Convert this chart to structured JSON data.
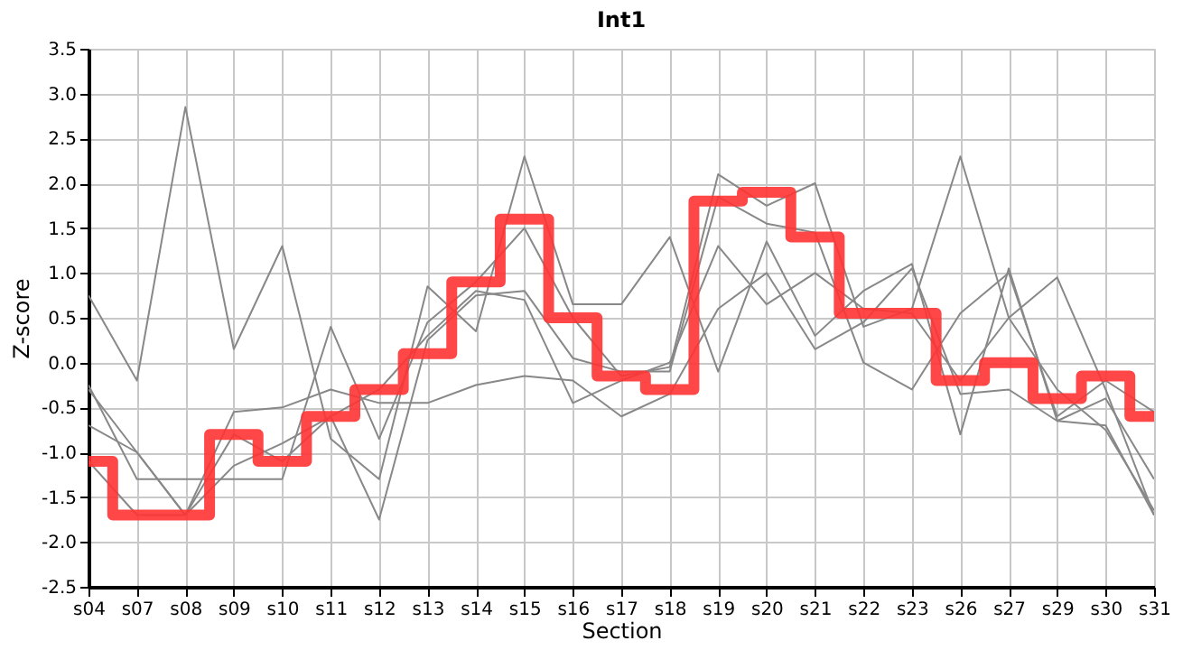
{
  "chart_data": {
    "type": "line",
    "title": "Int1",
    "xlabel": "Section",
    "ylabel": "Z-score",
    "categories": [
      "s04",
      "s07",
      "s08",
      "s09",
      "s10",
      "s11",
      "s12",
      "s13",
      "s14",
      "s15",
      "s16",
      "s17",
      "s18",
      "s19",
      "s20",
      "s21",
      "s22",
      "s23",
      "s26",
      "s27",
      "s29",
      "s30",
      "s31"
    ],
    "series": [
      {
        "color": "#888888",
        "values": [
          0.75,
          -0.2,
          2.85,
          0.15,
          1.3,
          -0.85,
          -1.3,
          0.85,
          0.35,
          2.3,
          0.65,
          0.65,
          1.4,
          -0.1,
          1.35,
          0.3,
          0.8,
          1.1,
          -0.8,
          1.05,
          -0.65,
          -0.4,
          -1.3
        ]
      },
      {
        "color": "#888888",
        "values": [
          -0.25,
          -1.3,
          -1.3,
          -1.3,
          -1.3,
          0.4,
          -0.85,
          0.45,
          0.9,
          1.5,
          0.5,
          -0.15,
          -0.05,
          2.1,
          1.75,
          2.0,
          0.4,
          0.6,
          2.3,
          0.5,
          0.95,
          -0.3,
          -1.7
        ]
      },
      {
        "color": "#888888",
        "values": [
          -0.3,
          -1.0,
          -1.7,
          -0.55,
          -0.5,
          -0.3,
          -0.45,
          -0.45,
          -0.25,
          -0.15,
          -0.2,
          -0.6,
          -0.35,
          0.6,
          1.0,
          0.15,
          0.45,
          1.05,
          -0.35,
          -0.3,
          -0.65,
          -0.7,
          -1.7
        ]
      },
      {
        "color": "#888888",
        "values": [
          -0.7,
          -1.0,
          -1.7,
          -1.15,
          -0.9,
          -0.6,
          -1.75,
          0.25,
          0.75,
          0.8,
          0.05,
          -0.1,
          -0.1,
          1.85,
          1.55,
          1.45,
          0.0,
          -0.3,
          0.55,
          1.0,
          -0.6,
          -0.2,
          -0.55
        ]
      },
      {
        "color": "#888888",
        "values": [
          -1.1,
          -1.7,
          -1.7,
          -0.8,
          -1.1,
          -0.6,
          -0.3,
          0.3,
          0.8,
          0.7,
          -0.45,
          -0.2,
          0.0,
          1.3,
          0.65,
          1.0,
          0.6,
          0.55,
          -0.2,
          0.5,
          -0.3,
          -0.75,
          -1.65
        ]
      },
      {
        "color": "#ff3333",
        "type": "step",
        "values": [
          -1.1,
          -1.7,
          -1.7,
          -0.8,
          -1.1,
          -0.6,
          -0.3,
          0.1,
          0.9,
          1.6,
          0.5,
          -0.15,
          -0.3,
          1.8,
          1.9,
          1.4,
          0.55,
          0.55,
          -0.2,
          0.0,
          -0.4,
          -0.15,
          -0.6
        ]
      }
    ],
    "ylim": [
      -2.5,
      3.5
    ],
    "yticks": [
      {
        "value": -2.5,
        "label": "-2.5"
      },
      {
        "value": -2,
        "label": "-2.0"
      },
      {
        "value": -1.5,
        "label": "-1.5"
      },
      {
        "value": -1,
        "label": "-1.0"
      },
      {
        "value": -0.5,
        "label": "-0.5"
      },
      {
        "value": 0,
        "label": "0.0"
      },
      {
        "value": 0.5,
        "label": "0.5"
      },
      {
        "value": 1,
        "label": "1.0"
      },
      {
        "value": 1.5,
        "label": "1.5"
      },
      {
        "value": 2,
        "label": "2.0"
      },
      {
        "value": 2.5,
        "label": "2.5"
      },
      {
        "value": 3,
        "label": "3.0"
      },
      {
        "value": 3.5,
        "label": "3.5"
      }
    ],
    "grid": true
  }
}
